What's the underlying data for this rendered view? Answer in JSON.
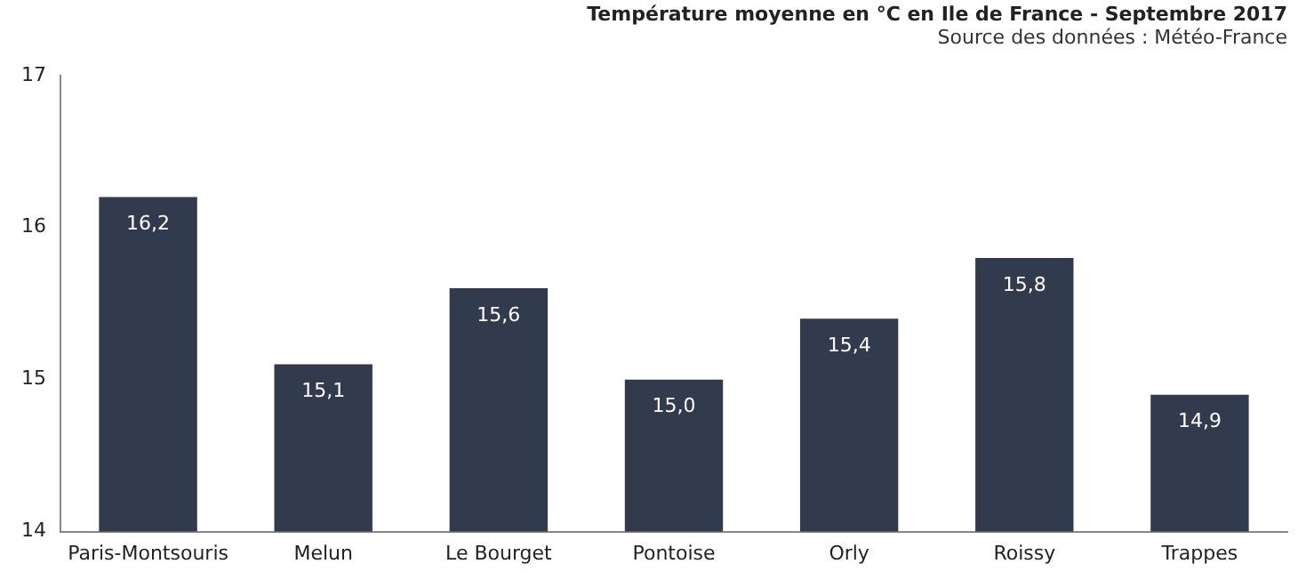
{
  "chart_data": {
    "type": "bar",
    "title": "Température moyenne en °C en Ile de France - Septembre 2017",
    "subtitle": "Source des données : Météo-France",
    "categories": [
      "Paris-Montsouris",
      "Melun",
      "Le Bourget",
      "Pontoise",
      "Orly",
      "Roissy",
      "Trappes"
    ],
    "values": [
      16.2,
      15.1,
      15.6,
      15.0,
      15.4,
      15.8,
      14.9
    ],
    "value_labels": [
      "16,2",
      "15,1",
      "15,6",
      "15,0",
      "15,4",
      "15,8",
      "14,9"
    ],
    "color": "#323b4e",
    "ylim": [
      14,
      17
    ],
    "yticks": [
      14,
      15,
      16,
      17
    ],
    "grid": false,
    "legend": false
  }
}
